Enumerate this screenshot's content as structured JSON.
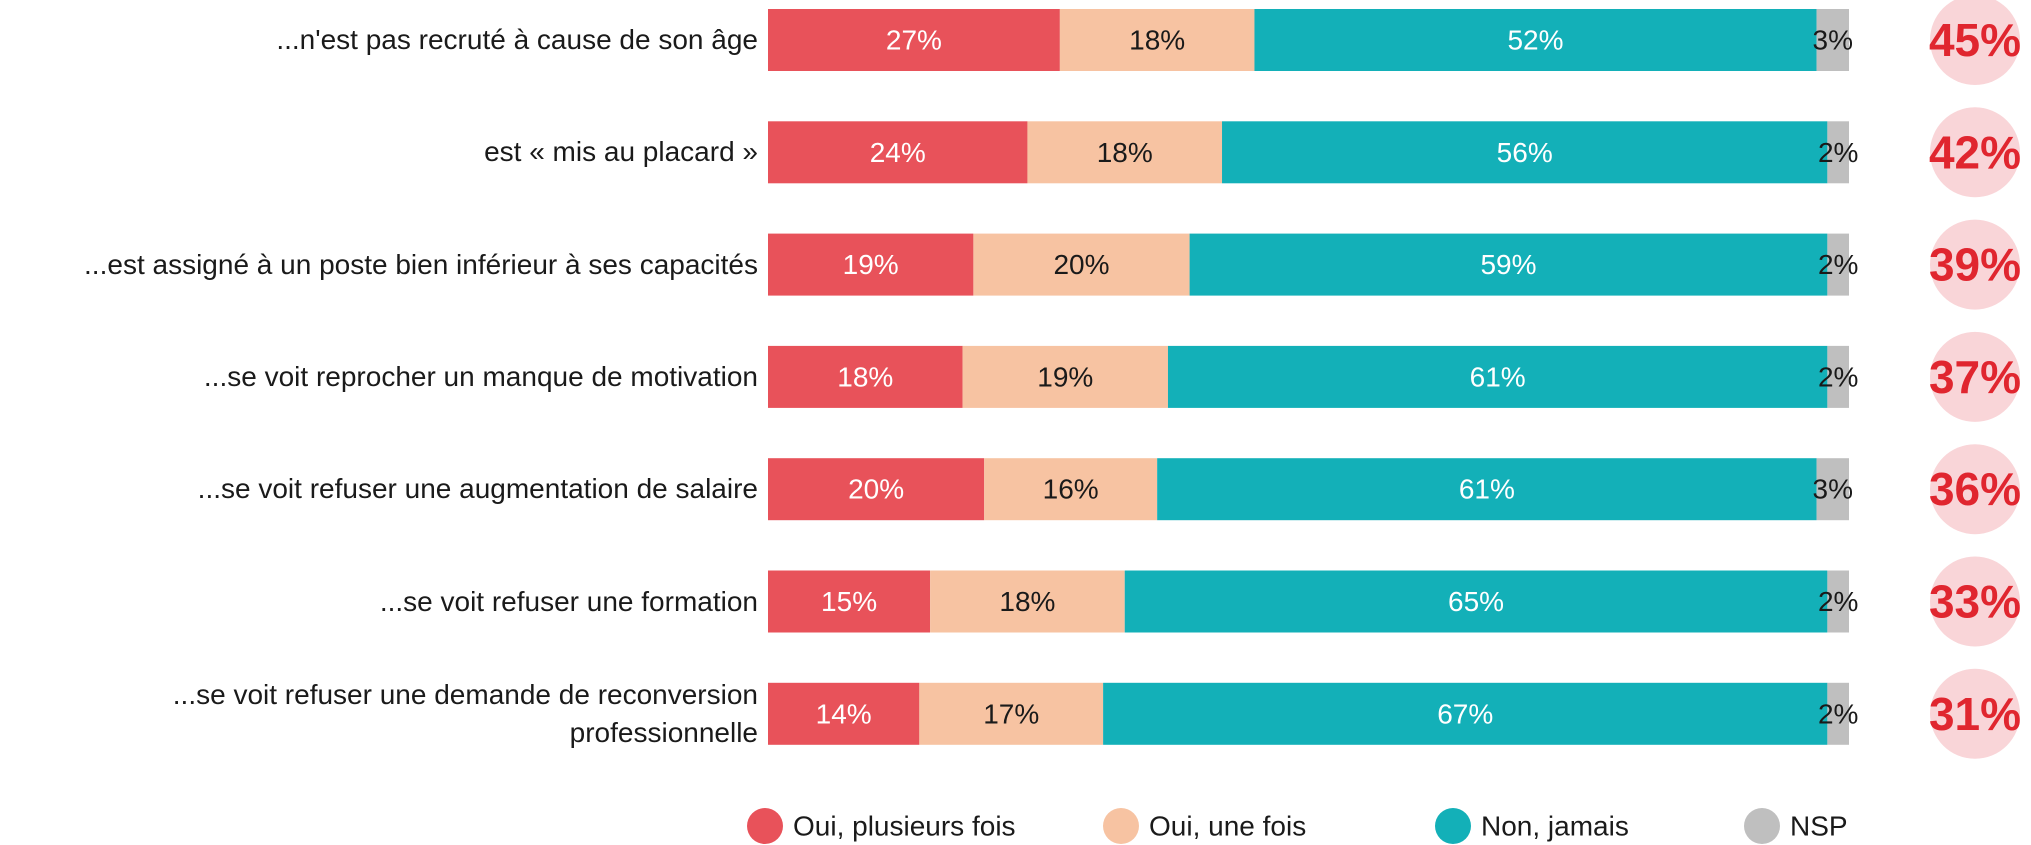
{
  "chart_data": {
    "type": "stacked-bar-horizontal",
    "categories": [
      "...n'est pas recruté à cause de son âge",
      "est « mis au placard »",
      "...est assigné à un poste bien inférieur à ses capacités",
      "...se voit reprocher un manque de motivation",
      "...se voit refuser une augmentation de salaire",
      "...se voit refuser une formation",
      "...se voit refuser une demande de reconversion professionnelle"
    ],
    "xlim": [
      0,
      100
    ],
    "series": [
      {
        "name": "Oui, plusieurs fois",
        "color": "#e8525a",
        "text_color": "#ffffff",
        "values": [
          27,
          24,
          19,
          18,
          20,
          15,
          14
        ],
        "value_labels": [
          "27%",
          "24%",
          "19%",
          "18%",
          "20%",
          "15%",
          "14%"
        ]
      },
      {
        "name": "Oui, une fois",
        "color": "#f7c3a2",
        "text_color": "#1a1a1a",
        "values": [
          18,
          18,
          20,
          19,
          16,
          18,
          17
        ],
        "value_labels": [
          "18%",
          "18%",
          "20%",
          "19%",
          "16%",
          "18%",
          "17%"
        ]
      },
      {
        "name": "Non, jamais",
        "color": "#13b0b8",
        "text_color": "#ffffff",
        "values": [
          52,
          56,
          59,
          61,
          61,
          65,
          67
        ],
        "value_labels": [
          "52%",
          "56%",
          "59%",
          "61%",
          "61%",
          "65%",
          "67%"
        ]
      },
      {
        "name": "NSP",
        "color": "#bfbfbf",
        "text_color": "#1a1a1a",
        "values": [
          3,
          2,
          2,
          2,
          3,
          2,
          2
        ],
        "value_labels": [
          "3%",
          "2%",
          "2%",
          "2%",
          "3%",
          "2%",
          "2%"
        ]
      }
    ],
    "totals": {
      "color": "#e0262f",
      "background": "#f9d5d8",
      "values": [
        45,
        42,
        39,
        37,
        36,
        33,
        31
      ],
      "value_labels": [
        "45%",
        "42%",
        "39%",
        "37%",
        "36%",
        "33%",
        "31%"
      ]
    }
  }
}
